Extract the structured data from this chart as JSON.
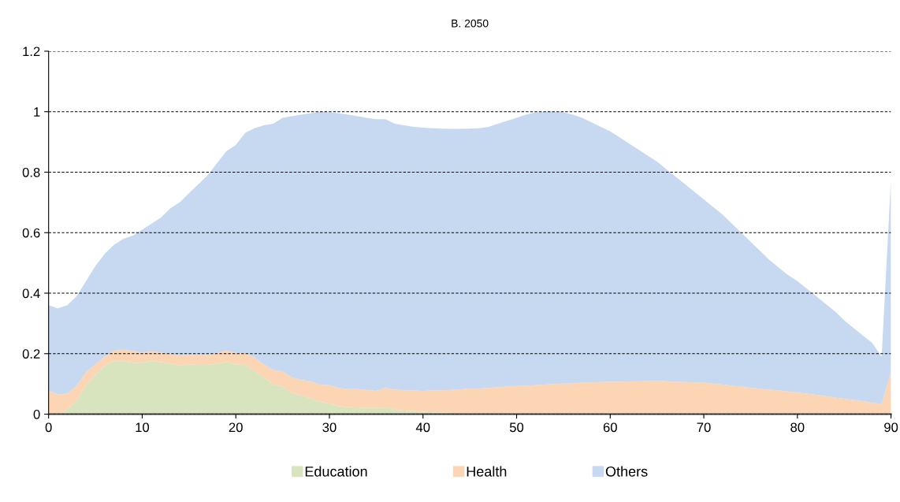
{
  "chart_data": {
    "type": "area",
    "title": "B. 2050",
    "stacked": true,
    "grid": "y",
    "line_style": "dashed",
    "legend": "bottom",
    "x": [
      0,
      1,
      2,
      3,
      4,
      5,
      6,
      7,
      8,
      9,
      10,
      11,
      12,
      13,
      14,
      15,
      16,
      17,
      18,
      19,
      20,
      21,
      22,
      23,
      24,
      25,
      26,
      27,
      28,
      29,
      30,
      31,
      32,
      33,
      34,
      35,
      36,
      37,
      38,
      39,
      40,
      41,
      42,
      43,
      44,
      45,
      46,
      47,
      48,
      49,
      50,
      51,
      52,
      53,
      54,
      55,
      56,
      57,
      58,
      59,
      60,
      61,
      62,
      63,
      64,
      65,
      66,
      67,
      68,
      69,
      70,
      71,
      72,
      73,
      74,
      75,
      76,
      77,
      78,
      79,
      80,
      81,
      82,
      83,
      84,
      85,
      86,
      87,
      88,
      89,
      90
    ],
    "xlim": [
      0,
      90
    ],
    "xticks": [
      0,
      10,
      20,
      30,
      40,
      50,
      60,
      70,
      80,
      90
    ],
    "ylim": [
      0,
      1.2
    ],
    "yticks": [
      0,
      0.2,
      0.4,
      0.6,
      0.8,
      {
        "value": 1,
        "label": "1"
      },
      1.2
    ],
    "series": [
      {
        "name": "Education",
        "color": "#d7e4bd",
        "values": [
          0,
          0,
          0.015,
          0.045,
          0.095,
          0.13,
          0.16,
          0.175,
          0.175,
          0.17,
          0.17,
          0.175,
          0.172,
          0.167,
          0.16,
          0.165,
          0.163,
          0.163,
          0.167,
          0.173,
          0.164,
          0.163,
          0.143,
          0.122,
          0.098,
          0.091,
          0.07,
          0.061,
          0.052,
          0.041,
          0.035,
          0.026,
          0.023,
          0.022,
          0.02,
          0.02,
          0.022,
          0.015,
          0.012,
          0.01,
          0.008,
          0.006,
          0.005,
          0.004,
          0.003,
          0.002,
          0.001,
          0.001,
          0,
          0,
          0,
          0,
          0,
          0,
          0,
          0,
          0,
          0,
          0,
          0,
          0,
          0,
          0,
          0,
          0,
          0,
          0,
          0,
          0,
          0,
          0,
          0,
          0,
          0,
          0,
          0,
          0,
          0,
          0,
          0,
          0,
          0,
          0,
          0,
          0,
          0,
          0,
          0,
          0,
          0,
          0
        ]
      },
      {
        "name": "Health",
        "color": "#fcd5b5",
        "values": [
          0.078,
          0.065,
          0.053,
          0.048,
          0.044,
          0.035,
          0.03,
          0.035,
          0.038,
          0.039,
          0.033,
          0.032,
          0.032,
          0.033,
          0.034,
          0.031,
          0.033,
          0.033,
          0.035,
          0.037,
          0.038,
          0.039,
          0.044,
          0.043,
          0.048,
          0.05,
          0.052,
          0.052,
          0.057,
          0.057,
          0.061,
          0.061,
          0.06,
          0.061,
          0.06,
          0.057,
          0.065,
          0.066,
          0.067,
          0.068,
          0.069,
          0.072,
          0.074,
          0.076,
          0.079,
          0.082,
          0.084,
          0.086,
          0.089,
          0.091,
          0.093,
          0.094,
          0.096,
          0.098,
          0.1,
          0.101,
          0.102,
          0.104,
          0.105,
          0.106,
          0.107,
          0.107,
          0.108,
          0.109,
          0.109,
          0.11,
          0.109,
          0.107,
          0.106,
          0.105,
          0.104,
          0.101,
          0.098,
          0.094,
          0.091,
          0.087,
          0.084,
          0.081,
          0.078,
          0.075,
          0.072,
          0.068,
          0.064,
          0.06,
          0.055,
          0.051,
          0.047,
          0.043,
          0.038,
          0.033,
          0.14
        ]
      },
      {
        "name": "Others",
        "color": "#c6d9f0",
        "values": [
          0.282,
          0.285,
          0.292,
          0.297,
          0.301,
          0.325,
          0.34,
          0.35,
          0.367,
          0.381,
          0.407,
          0.423,
          0.446,
          0.48,
          0.506,
          0.534,
          0.564,
          0.594,
          0.628,
          0.66,
          0.688,
          0.728,
          0.758,
          0.79,
          0.814,
          0.839,
          0.863,
          0.877,
          0.886,
          0.902,
          0.902,
          0.908,
          0.907,
          0.902,
          0.9,
          0.898,
          0.888,
          0.879,
          0.876,
          0.872,
          0.87,
          0.867,
          0.865,
          0.863,
          0.861,
          0.86,
          0.86,
          0.863,
          0.871,
          0.879,
          0.887,
          0.896,
          0.902,
          0.902,
          0.9,
          0.897,
          0.888,
          0.876,
          0.86,
          0.844,
          0.828,
          0.808,
          0.787,
          0.766,
          0.746,
          0.725,
          0.701,
          0.678,
          0.654,
          0.63,
          0.606,
          0.584,
          0.562,
          0.536,
          0.509,
          0.483,
          0.456,
          0.429,
          0.407,
          0.385,
          0.368,
          0.347,
          0.326,
          0.305,
          0.285,
          0.259,
          0.238,
          0.217,
          0.197,
          0.157,
          0.64
        ]
      }
    ]
  }
}
